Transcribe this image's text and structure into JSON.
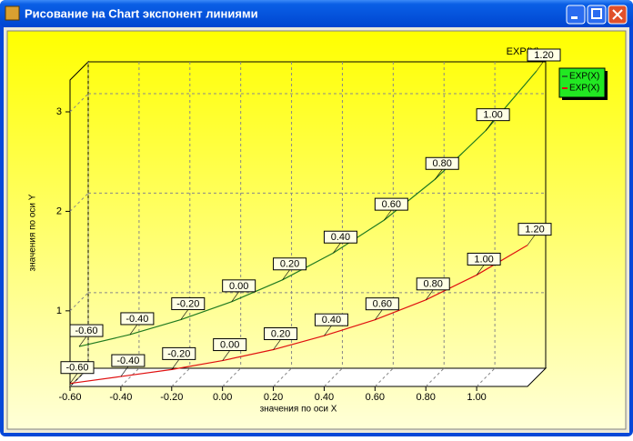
{
  "window": {
    "title": "Рисование на Chart экспонент линиями"
  },
  "chart_data": {
    "type": "line",
    "title": "EXP(X)",
    "x_label": "значения по оси X",
    "y_label": "значения по оси Y",
    "x": [
      -0.6,
      -0.4,
      -0.2,
      0,
      0.2,
      0.4,
      0.6,
      0.8,
      1.0,
      1.2
    ],
    "series": [
      {
        "name": "EXP(X)",
        "color": "#207a20",
        "values": [
          0.55,
          0.67,
          0.82,
          1.0,
          1.22,
          1.49,
          1.82,
          2.23,
          2.72,
          3.32
        ],
        "value_labels": [
          "-0.60",
          "-0.40",
          "-0.20",
          "0.00",
          "0.20",
          "0.40",
          "0.60",
          "0.80",
          "1.00",
          "1.20"
        ]
      },
      {
        "name": "EXP(X)",
        "color": "#e01010",
        "values": [
          0.27,
          0.34,
          0.41,
          0.5,
          0.61,
          0.75,
          0.91,
          1.11,
          1.36,
          1.66
        ],
        "value_labels": [
          "-0.60",
          "-0.40",
          "-0.20",
          "0.00",
          "0.20",
          "0.40",
          "0.60",
          "0.80",
          "1.00",
          "1.20"
        ]
      }
    ],
    "xlim": [
      -0.6,
      1.2
    ],
    "xticks": [
      {
        "value": -0.6,
        "label": "-0.60"
      },
      {
        "value": -0.4,
        "label": "-0.40"
      },
      {
        "value": -0.2,
        "label": "-0.20"
      },
      {
        "value": 0,
        "label": "0.00"
      },
      {
        "value": 0.2,
        "label": "0.20"
      },
      {
        "value": 0.4,
        "label": "0.40"
      },
      {
        "value": 0.6,
        "label": "0.60"
      },
      {
        "value": 0.8,
        "label": "0.80"
      },
      {
        "value": 1.0,
        "label": "1.00"
      }
    ],
    "ylim": [
      0.24,
      3.32
    ],
    "yticks": [
      1,
      2,
      3
    ],
    "grid": true,
    "legend": "top-right",
    "legend_color": "#22e822"
  }
}
